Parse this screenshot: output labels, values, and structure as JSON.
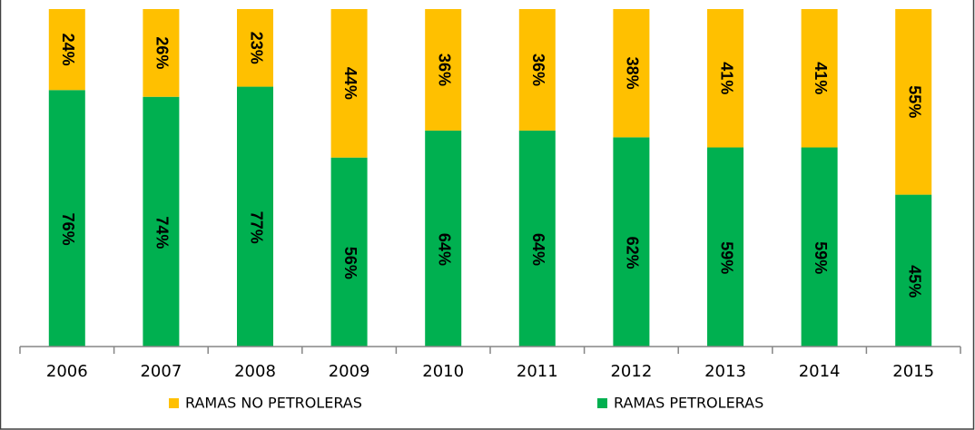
{
  "chart_data": {
    "type": "stacked_bar",
    "categories": [
      "2006",
      "2007",
      "2008",
      "2009",
      "2010",
      "2011",
      "2012",
      "2013",
      "2014",
      "2015"
    ],
    "series": [
      {
        "name": "RAMAS NO PETROLERAS",
        "color": "#ffc000",
        "values": [
          24,
          26,
          23,
          44,
          36,
          36,
          38,
          41,
          41,
          55
        ],
        "value_labels": [
          "24%",
          "26%",
          "23%",
          "44%",
          "36%",
          "36%",
          "38%",
          "41%",
          "41%",
          "55%"
        ]
      },
      {
        "name": "RAMAS PETROLERAS",
        "color": "#00b050",
        "values": [
          76,
          74,
          77,
          56,
          64,
          64,
          62,
          59,
          59,
          45
        ],
        "value_labels": [
          "76%",
          "74%",
          "77%",
          "56%",
          "64%",
          "64%",
          "62%",
          "59%",
          "59%",
          "45%"
        ]
      }
    ],
    "ylim": [
      0,
      100
    ],
    "legend": "bottom"
  }
}
